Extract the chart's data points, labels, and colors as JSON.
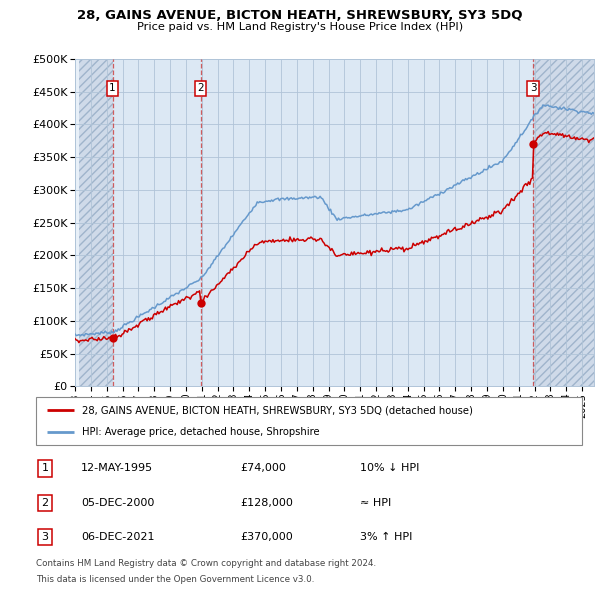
{
  "title": "28, GAINS AVENUE, BICTON HEATH, SHREWSBURY, SY3 5DQ",
  "subtitle": "Price paid vs. HM Land Registry's House Price Index (HPI)",
  "ylim": [
    0,
    500000
  ],
  "yticks": [
    0,
    50000,
    100000,
    150000,
    200000,
    250000,
    300000,
    350000,
    400000,
    450000,
    500000
  ],
  "xlim_start": 1993.25,
  "xlim_end": 2025.75,
  "sale_dates": [
    1995.37,
    2000.92,
    2021.92
  ],
  "sale_prices": [
    74000,
    128000,
    370000
  ],
  "sale_labels": [
    "1",
    "2",
    "3"
  ],
  "legend_line1": "28, GAINS AVENUE, BICTON HEATH, SHREWSBURY, SY3 5DQ (detached house)",
  "legend_line2": "HPI: Average price, detached house, Shropshire",
  "table_data": [
    [
      "1",
      "12-MAY-1995",
      "£74,000",
      "10% ↓ HPI"
    ],
    [
      "2",
      "05-DEC-2000",
      "£128,000",
      "≈ HPI"
    ],
    [
      "3",
      "06-DEC-2021",
      "£370,000",
      "3% ↑ HPI"
    ]
  ],
  "footnote1": "Contains HM Land Registry data © Crown copyright and database right 2024.",
  "footnote2": "This data is licensed under the Open Government Licence v3.0.",
  "red_color": "#cc0000",
  "blue_color": "#6699cc",
  "grid_color": "#b0c4d8",
  "hatch_color": "#c8d8e8"
}
